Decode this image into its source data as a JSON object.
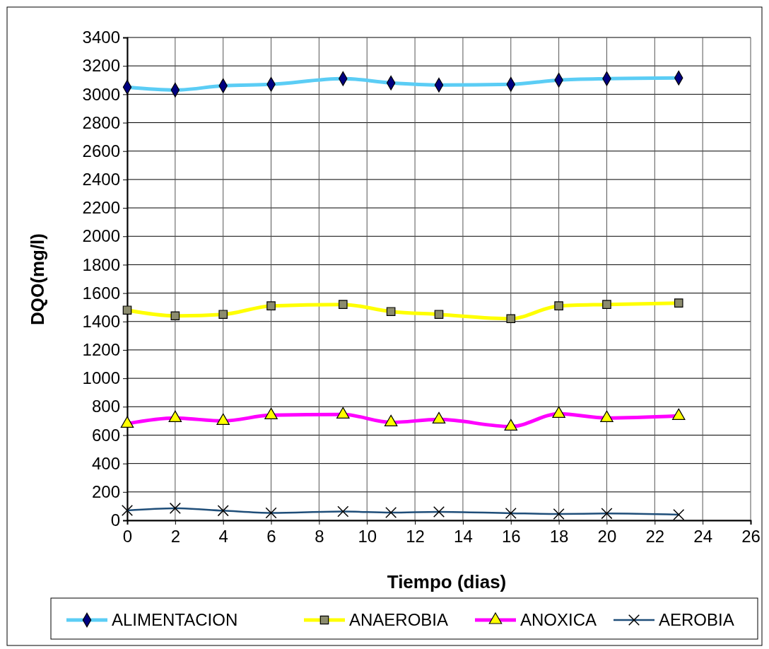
{
  "chart_data": {
    "type": "line",
    "xlabel": "Tiempo (dias)",
    "ylabel": "DQO(mg/l)",
    "x": [
      0,
      2,
      4,
      6,
      9,
      11,
      13,
      16,
      18,
      20,
      23
    ],
    "xlim": [
      0,
      26
    ],
    "xticks": [
      0,
      2,
      4,
      6,
      8,
      10,
      12,
      14,
      16,
      18,
      20,
      22,
      24,
      26
    ],
    "ylim": [
      0,
      3400
    ],
    "yticks": [
      0,
      200,
      400,
      600,
      800,
      1000,
      1200,
      1400,
      1600,
      1800,
      2000,
      2200,
      2400,
      2600,
      2800,
      3000,
      3200,
      3400
    ],
    "grid": true,
    "legend": "bottom",
    "series": [
      {
        "name": "ALIMENTACION",
        "color": "#5bcdf5",
        "marker": "diamond",
        "values": [
          3050,
          3030,
          3060,
          3070,
          3110,
          3080,
          3065,
          3070,
          3100,
          3110,
          3115
        ]
      },
      {
        "name": "ANAEROBIA",
        "color": "#ffff00",
        "marker": "square",
        "values": [
          1480,
          1440,
          1450,
          1510,
          1520,
          1470,
          1450,
          1420,
          1510,
          1520,
          1530
        ]
      },
      {
        "name": "ANOXICA",
        "color": "#ff00ff",
        "marker": "triangle",
        "values": [
          680,
          720,
          700,
          740,
          745,
          690,
          710,
          660,
          750,
          720,
          735
        ]
      },
      {
        "name": "AEROBIA",
        "color": "#1f4e79",
        "marker": "cross",
        "values": [
          70,
          85,
          68,
          52,
          62,
          55,
          60,
          50,
          45,
          48,
          40
        ]
      }
    ]
  }
}
